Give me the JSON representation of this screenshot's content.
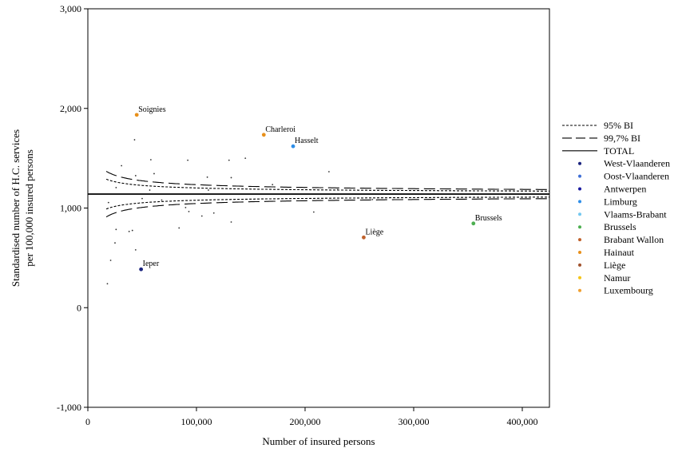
{
  "chart_data": {
    "type": "scatter",
    "title": "",
    "xlabel": "Number of insured persons",
    "ylabel_lines": [
      "Standardised number of H.C. services",
      "per 100,000 insured persons"
    ],
    "xlim": [
      0,
      425000
    ],
    "ylim": [
      -1000,
      3000
    ],
    "x_ticks": [
      0,
      100000,
      200000,
      300000,
      400000
    ],
    "x_tick_labels": [
      "0",
      "100,000",
      "200,000",
      "300,000",
      "400,000"
    ],
    "y_ticks": [
      -1000,
      0,
      1000,
      2000,
      3000
    ],
    "y_tick_labels": [
      "-1,000",
      "0",
      "1,000",
      "2,000",
      "3,000"
    ],
    "grid": false,
    "legend_position": "right",
    "total_value": 1140,
    "bands": [
      {
        "name": "95% BI",
        "style": "dotted",
        "z": 1.96
      },
      {
        "name": "99,7% BI",
        "style": "dashed",
        "z": 3.0
      }
    ],
    "band_scale": 9950,
    "legend": [
      {
        "label": "95% BI",
        "kind": "dotted"
      },
      {
        "label": "99,7% BI",
        "kind": "dashed"
      },
      {
        "label": "TOTAL",
        "kind": "solid"
      },
      {
        "label": "West-Vlaanderen",
        "kind": "dot",
        "color": "#1a237e"
      },
      {
        "label": "Oost-Vlaanderen",
        "kind": "dot",
        "color": "#3f6fd6"
      },
      {
        "label": "Antwerpen",
        "kind": "dot",
        "color": "#1a1aa0"
      },
      {
        "label": "Limburg",
        "kind": "dot",
        "color": "#2e8ee8"
      },
      {
        "label": "Vlaams-Brabant",
        "kind": "dot",
        "color": "#74c8f0"
      },
      {
        "label": "Brussels",
        "kind": "dot",
        "color": "#4caf50"
      },
      {
        "label": "Brabant Wallon",
        "kind": "dot",
        "color": "#c0612b"
      },
      {
        "label": "Hainaut",
        "kind": "dot",
        "color": "#e8901a"
      },
      {
        "label": "Liège",
        "kind": "dot",
        "color": "#a0522d"
      },
      {
        "label": "Namur",
        "kind": "dot",
        "color": "#f5c518"
      },
      {
        "label": "Luxembourg",
        "kind": "dot",
        "color": "#f0a030"
      }
    ],
    "labeled_points": [
      {
        "label": "Soignies",
        "x": 45000,
        "y": 1935,
        "color": "#e8901a"
      },
      {
        "label": "Charleroi",
        "x": 162000,
        "y": 1735,
        "color": "#e8901a"
      },
      {
        "label": "Hasselt",
        "x": 189000,
        "y": 1620,
        "color": "#2e8ee8"
      },
      {
        "label": "Brussels",
        "x": 355000,
        "y": 845,
        "color": "#4caf50"
      },
      {
        "label": "Liège",
        "x": 254000,
        "y": 705,
        "color": "#c0612b"
      },
      {
        "label": "Ieper",
        "x": 49000,
        "y": 385,
        "color": "#1a237e"
      }
    ],
    "small_points": [
      [
        43000,
        1685
      ],
      [
        31000,
        1425
      ],
      [
        44000,
        1325
      ],
      [
        58000,
        1485
      ],
      [
        61000,
        1345
      ],
      [
        92000,
        1480
      ],
      [
        110000,
        1310
      ],
      [
        130000,
        1480
      ],
      [
        132000,
        1305
      ],
      [
        145000,
        1500
      ],
      [
        222000,
        1365
      ],
      [
        26000,
        1205
      ],
      [
        57000,
        1180
      ],
      [
        111000,
        1180
      ],
      [
        170000,
        1235
      ],
      [
        230000,
        1185
      ],
      [
        262000,
        1085
      ],
      [
        19000,
        1055
      ],
      [
        50000,
        1095
      ],
      [
        68000,
        1080
      ],
      [
        90000,
        1005
      ],
      [
        93000,
        965
      ],
      [
        105000,
        920
      ],
      [
        116000,
        950
      ],
      [
        132000,
        860
      ],
      [
        208000,
        960
      ],
      [
        26000,
        785
      ],
      [
        38000,
        765
      ],
      [
        41000,
        775
      ],
      [
        84000,
        800
      ],
      [
        25000,
        650
      ],
      [
        44000,
        580
      ],
      [
        21000,
        475
      ],
      [
        18000,
        240
      ]
    ]
  }
}
